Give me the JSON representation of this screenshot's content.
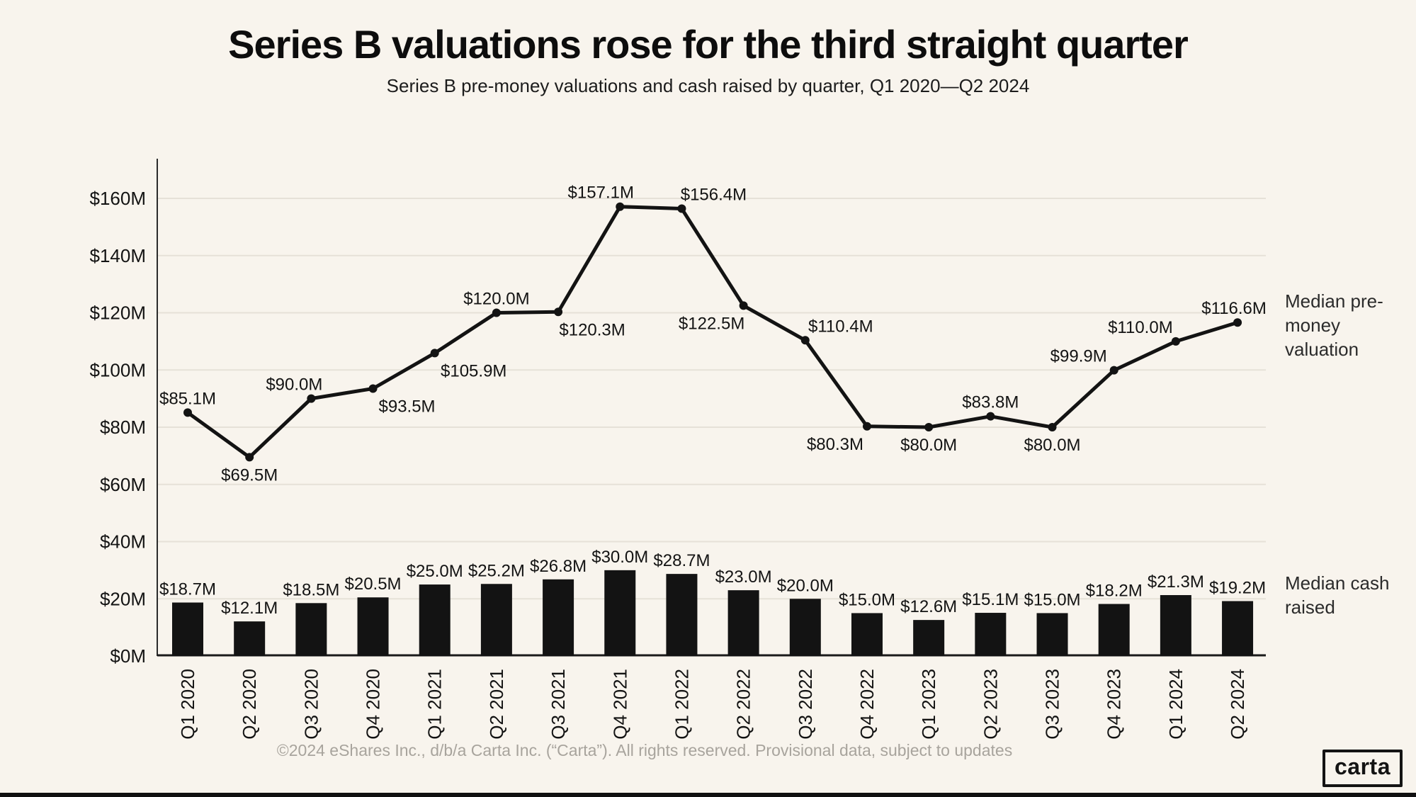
{
  "header": {
    "title": "Series B valuations rose for the third straight quarter",
    "subtitle": "Series B pre-money valuations and cash raised by quarter, Q1 2020—Q2 2024"
  },
  "annotations": {
    "line_series_label": "Median pre-money valuation",
    "bar_series_label": "Median cash raised"
  },
  "footer": {
    "copyright": "©2024 eShares Inc., d/b/a Carta Inc. (“Carta”). All rights reserved. Provisional data, subject to updates",
    "logo_text": "carta"
  },
  "colors": {
    "background": "#f8f4ed",
    "ink": "#131313",
    "grid": "#e6e1d8",
    "axis_left": "#2b2b2b",
    "axis_bottom": "#1a1a1a",
    "footer_text": "#a8a49d"
  },
  "chart_data": {
    "type": "combo",
    "categories": [
      "Q1 2020",
      "Q2 2020",
      "Q3 2020",
      "Q4 2020",
      "Q1 2021",
      "Q2 2021",
      "Q3 2021",
      "Q4 2021",
      "Q1 2022",
      "Q2 2022",
      "Q3 2022",
      "Q4 2022",
      "Q1 2023",
      "Q2 2023",
      "Q3 2023",
      "Q4 2023",
      "Q1 2024",
      "Q2 2024"
    ],
    "series": [
      {
        "name": "Median pre-money valuation",
        "type": "line",
        "values": [
          85.1,
          69.5,
          90.0,
          93.5,
          105.9,
          120.0,
          120.3,
          157.1,
          156.4,
          122.5,
          110.4,
          80.3,
          80.0,
          83.8,
          80.0,
          99.9,
          110.0,
          116.6
        ],
        "value_labels": [
          "$85.1M",
          "$69.5M",
          "$90.0M",
          "$93.5M",
          "$105.9M",
          "$120.0M",
          "$120.3M",
          "$157.1M",
          "$156.4M",
          "$122.5M",
          "$110.4M",
          "$80.3M",
          "$80.0M",
          "$83.8M",
          "$80.0M",
          "$99.9M",
          "$110.0M",
          "$116.6M"
        ],
        "label_pos": [
          "above",
          "below",
          "above",
          "below",
          "below",
          "above",
          "below",
          "above",
          "above",
          "below",
          "above",
          "below",
          "below",
          "above",
          "below",
          "above",
          "above",
          "above"
        ],
        "label_dx": [
          0,
          0,
          -24,
          48,
          55,
          0,
          48,
          -27,
          45,
          -45,
          50,
          -45,
          0,
          0,
          0,
          -50,
          -50,
          -5
        ]
      },
      {
        "name": "Median cash raised",
        "type": "bar",
        "values": [
          18.7,
          12.1,
          18.5,
          20.5,
          25.0,
          25.2,
          26.8,
          30.0,
          28.7,
          23.0,
          20.0,
          15.0,
          12.6,
          15.1,
          15.0,
          18.2,
          21.3,
          19.2
        ],
        "value_labels": [
          "$18.7M",
          "$12.1M",
          "$18.5M",
          "$20.5M",
          "$25.0M",
          "$25.2M",
          "$26.8M",
          "$30.0M",
          "$28.7M",
          "$23.0M",
          "$20.0M",
          "$15.0M",
          "$12.6M",
          "$15.1M",
          "$15.0M",
          "$18.2M",
          "$21.3M",
          "$19.2M"
        ]
      }
    ],
    "yticks": {
      "values": [
        0,
        20,
        40,
        60,
        80,
        100,
        120,
        140,
        160
      ],
      "labels": [
        "$0M",
        "$20M",
        "$40M",
        "$60M",
        "$80M",
        "$100M",
        "$120M",
        "$140M",
        "$160M"
      ]
    },
    "ylim": [
      0,
      174
    ],
    "grid": "horizontal",
    "legend_position": "right"
  }
}
